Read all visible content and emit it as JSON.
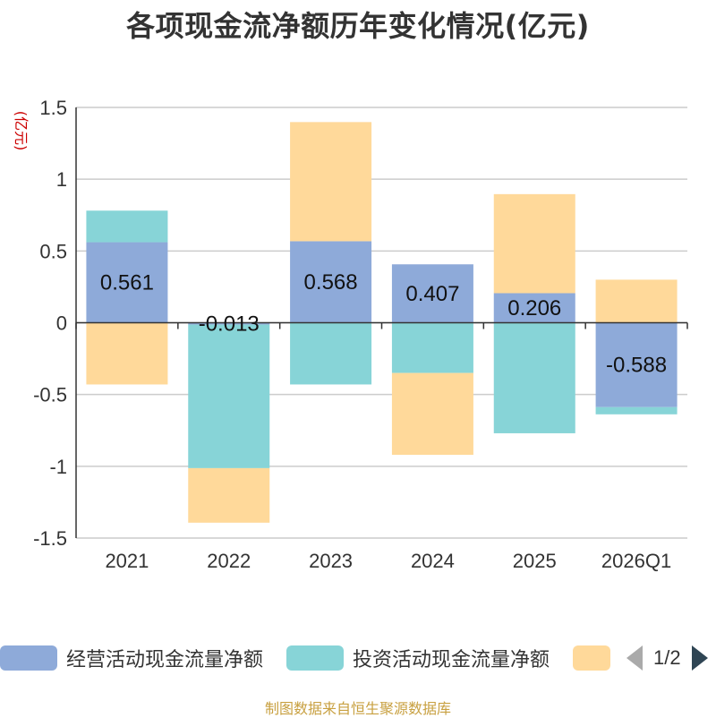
{
  "title": "各项现金流净额历年变化情况(亿元)",
  "source": "制图数据来自恒生聚源数据库",
  "pager": {
    "text": "1/2"
  },
  "legend": [
    {
      "label": "经营活动现金流量净额",
      "color": "#8eaad9"
    },
    {
      "label": "投资活动现金流量净额",
      "color": "#87d4d7"
    },
    {
      "label": "",
      "color": "#ffd99a"
    }
  ],
  "chart_data": {
    "type": "bar",
    "stacked": true,
    "title": "各项现金流净额历年变化情况(亿元)",
    "ylabel": "(亿元)",
    "xlabel": "",
    "ylim": [
      -1.5,
      1.5
    ],
    "yticks": [
      1.5,
      1,
      0.5,
      0,
      -0.5,
      -1,
      -1.5
    ],
    "ytick_labels": [
      "1.5",
      "1",
      "0.5",
      "0",
      "-0.5",
      "-1",
      "-1.5"
    ],
    "grid": true,
    "categories": [
      "2021",
      "2022",
      "2023",
      "2024",
      "2025",
      "2026Q1"
    ],
    "series": [
      {
        "name": "经营活动现金流量净额",
        "color": "#8eaad9",
        "values": [
          0.561,
          -0.013,
          0.568,
          0.407,
          0.206,
          -0.588
        ],
        "labels": [
          "0.561",
          "-0.013",
          "0.568",
          "0.407",
          "0.206",
          "-0.588"
        ]
      },
      {
        "name": "投资活动现金流量净额",
        "color": "#87d4d7",
        "values": [
          0.22,
          -1.0,
          -0.43,
          -0.35,
          -0.77,
          -0.05
        ]
      },
      {
        "name": "",
        "color": "#ffd99a",
        "values": [
          -0.43,
          -0.38,
          0.83,
          -0.57,
          0.69,
          0.3
        ]
      }
    ]
  }
}
